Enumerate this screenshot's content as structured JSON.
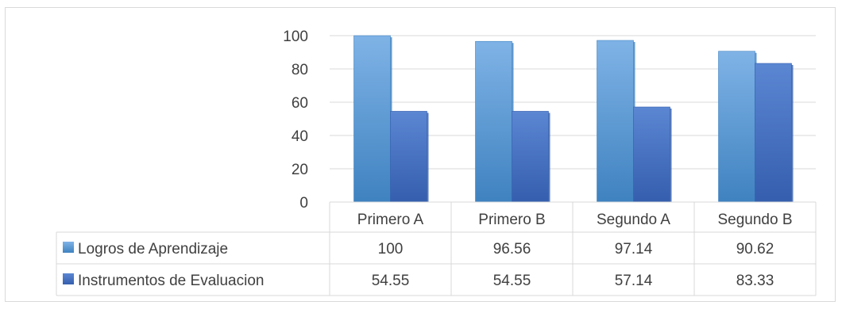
{
  "chart_data": {
    "type": "bar",
    "categories": [
      "Primero A",
      "Primero B",
      "Segundo A",
      "Segundo B"
    ],
    "series": [
      {
        "name": "Logros de Aprendizaje",
        "values": [
          100,
          96.56,
          97.14,
          90.62
        ],
        "value_labels": [
          "100",
          "96.56",
          "97.14",
          "90.62"
        ]
      },
      {
        "name": "Instrumentos de Evaluacion",
        "values": [
          54.55,
          54.55,
          57.14,
          83.33
        ],
        "value_labels": [
          "54.55",
          "54.55",
          "57.14",
          "83.33"
        ]
      }
    ],
    "yticks": [
      "0",
      "20",
      "40",
      "60",
      "80",
      "100"
    ],
    "ylim": [
      0,
      100
    ],
    "grid": true,
    "legend": "data-table",
    "colors": {
      "series": [
        "#5b9bd5",
        "#4472c4"
      ],
      "series_light": [
        "#7fb3e6",
        "#5b86d2"
      ],
      "series_dark": [
        "#3f82c0",
        "#355fae"
      ],
      "grid": "#d9d9d9",
      "text": "#404040"
    }
  }
}
